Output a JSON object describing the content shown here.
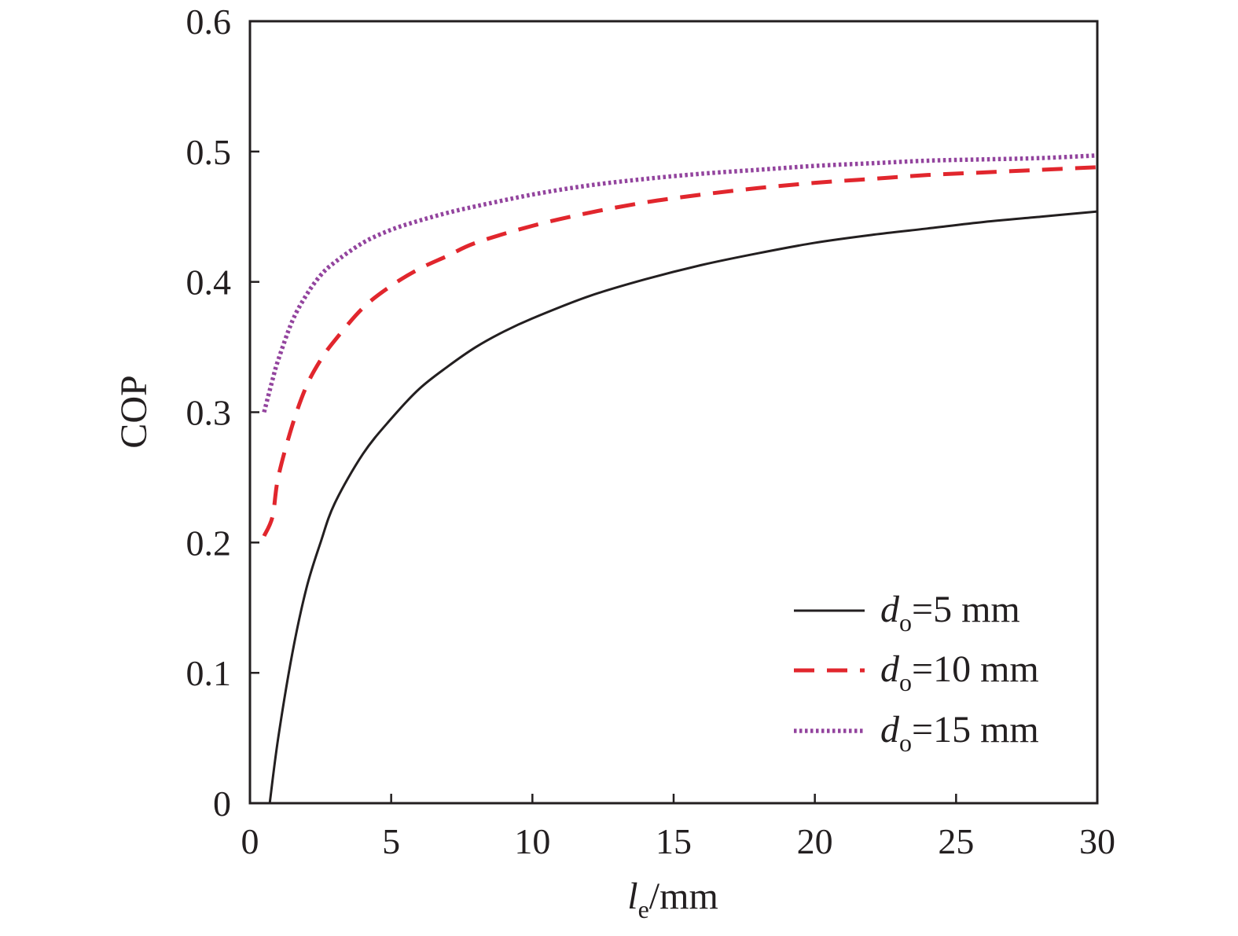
{
  "chart_data": {
    "type": "line",
    "xlabel": {
      "var": "l",
      "sub": "e",
      "rest": "/mm"
    },
    "ylabel": "COP",
    "xlim": [
      0,
      30
    ],
    "ylim": [
      0,
      0.6
    ],
    "xticks": [
      "0",
      "5",
      "10",
      "15",
      "20",
      "25",
      "30"
    ],
    "yticks": [
      "0",
      "0.1",
      "0.2",
      "0.3",
      "0.4",
      "0.5",
      "0.6"
    ],
    "xtick_values": [
      0,
      5,
      10,
      15,
      20,
      25,
      30
    ],
    "ytick_values": [
      0,
      0.1,
      0.2,
      0.3,
      0.4,
      0.5,
      0.6
    ],
    "grid": false,
    "legend_position": "bottom-right",
    "series": [
      {
        "name": {
          "var": "d",
          "sub": "o",
          "rest": "=5 mm"
        },
        "color": "#231f20",
        "style": "solid",
        "x": [
          0.7,
          1.0,
          1.5,
          2,
          2.5,
          3,
          4,
          5,
          6,
          7,
          8,
          9,
          10,
          12,
          14,
          16,
          18,
          20,
          22,
          24,
          26,
          28,
          30
        ],
        "y": [
          0.0,
          0.05,
          0.115,
          0.165,
          0.2,
          0.23,
          0.268,
          0.295,
          0.318,
          0.335,
          0.35,
          0.362,
          0.372,
          0.389,
          0.402,
          0.413,
          0.422,
          0.43,
          0.436,
          0.441,
          0.446,
          0.45,
          0.454
        ]
      },
      {
        "name": {
          "var": "d",
          "sub": "o",
          "rest": "=10 mm"
        },
        "color": "#e1262d",
        "style": "dashed",
        "x": [
          0.5,
          0.8,
          1.0,
          1.5,
          2,
          2.5,
          3,
          4,
          5,
          6,
          7,
          8,
          10,
          12,
          14,
          16,
          18,
          20,
          22,
          24,
          26,
          28,
          30
        ],
        "y": [
          0.205,
          0.22,
          0.25,
          0.29,
          0.32,
          0.34,
          0.355,
          0.38,
          0.397,
          0.41,
          0.42,
          0.43,
          0.443,
          0.453,
          0.461,
          0.467,
          0.472,
          0.476,
          0.479,
          0.482,
          0.484,
          0.486,
          0.488
        ]
      },
      {
        "name": {
          "var": "d",
          "sub": "o",
          "rest": "=15 mm"
        },
        "color": "#93449e",
        "style": "dotted",
        "x": [
          0.5,
          0.8,
          1.0,
          1.5,
          2,
          2.5,
          3,
          4,
          5,
          6,
          7,
          8,
          10,
          12,
          14,
          16,
          18,
          20,
          22,
          24,
          26,
          28,
          30
        ],
        "y": [
          0.3,
          0.325,
          0.34,
          0.37,
          0.39,
          0.405,
          0.415,
          0.43,
          0.44,
          0.447,
          0.453,
          0.458,
          0.467,
          0.474,
          0.479,
          0.483,
          0.486,
          0.489,
          0.491,
          0.493,
          0.494,
          0.495,
          0.497
        ]
      }
    ]
  }
}
